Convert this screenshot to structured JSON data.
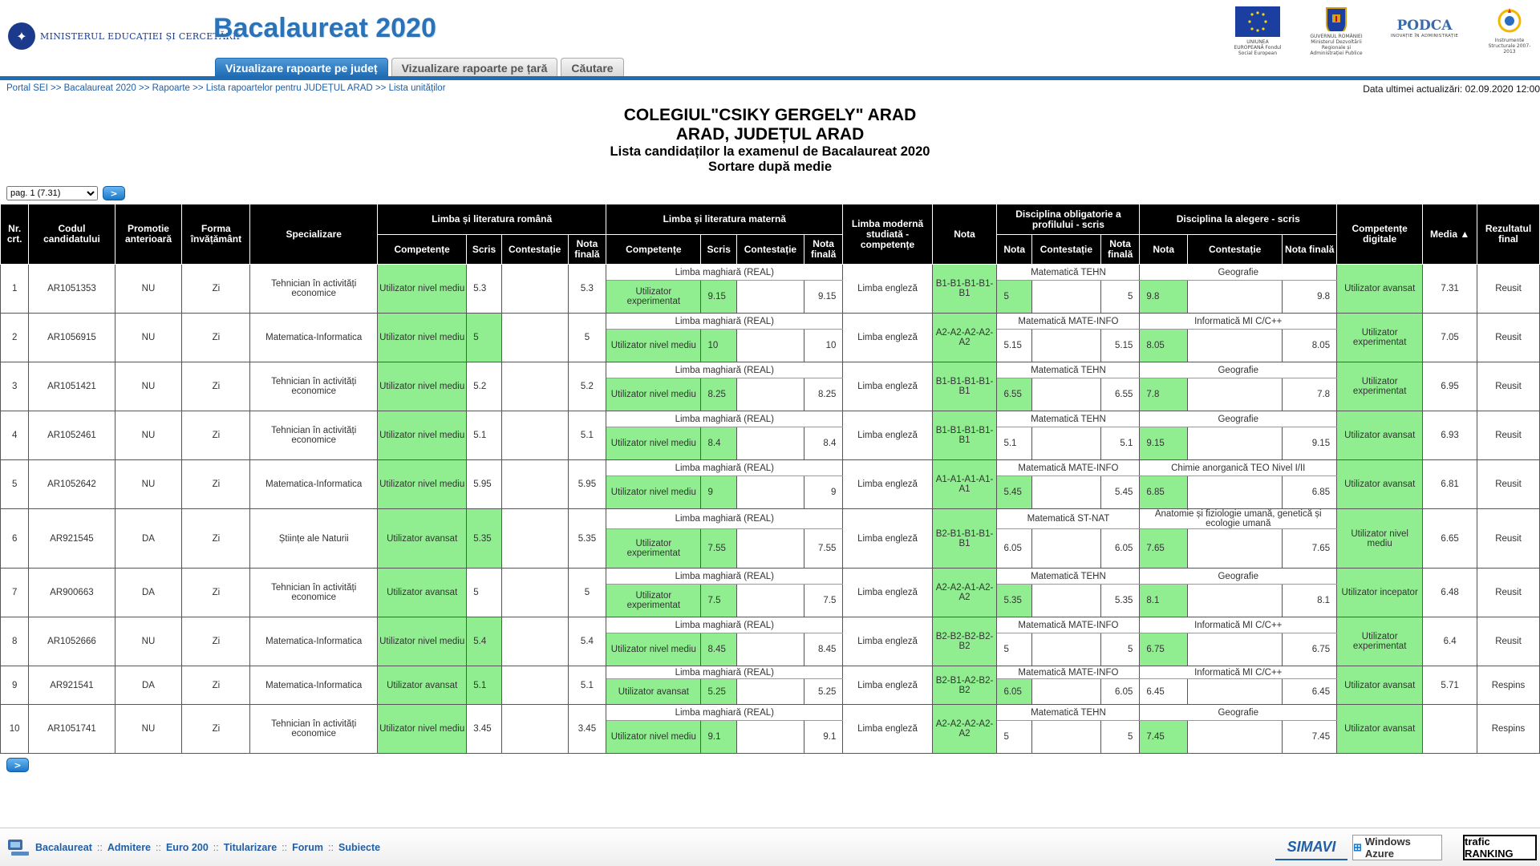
{
  "header": {
    "ministry": "MINISTERUL EDUCAȚIEI ȘI CERCETĂRII",
    "app_title": "Bacalaureat 2020",
    "logos": [
      {
        "name": "eu",
        "caption": "UNIUNEA EUROPEANĂ Fondul Social European"
      },
      {
        "name": "gov",
        "caption": "GUVERNUL ROMÂNIEI Ministerul Dezvoltării Regionale și Administrației Publice"
      },
      {
        "name": "podca",
        "caption": "PODCA",
        "sub": "INOVAȚIE ÎN ADMINISTRAȚIE"
      },
      {
        "name": "instr",
        "caption": "Instrumente Structurale 2007-2013"
      }
    ]
  },
  "tabs": [
    {
      "label": "Vizualizare rapoarte pe județ",
      "active": true
    },
    {
      "label": "Vizualizare rapoarte pe țară",
      "active": false
    },
    {
      "label": "Căutare",
      "active": false
    }
  ],
  "breadcrumb": [
    "Portal SEI",
    "Bacalaureat 2020",
    "Rapoarte",
    "Lista rapoartelor pentru JUDEȚUL ARAD",
    "Lista unităților"
  ],
  "breadcrumb_sep": ">>",
  "updated": "Data ultimei actualizări: 02.09.2020 12:00",
  "titles": {
    "school": "COLEGIUL\"CSIKY GERGELY\" ARAD",
    "location": "ARAD, JUDEȚUL ARAD",
    "list": "Lista candidaților la examenul de Bacalaureat 2020",
    "sort": "Sortare după medie"
  },
  "pager": {
    "selected": "pag. 1 (7.31)",
    "go": ">"
  },
  "table": {
    "headers": {
      "nr": "Nr. crt.",
      "code": "Codul candidatului",
      "promo": "Promotie anterioară",
      "form": "Forma învățământ",
      "spec": "Specializare",
      "romana": "Limba și literatura română",
      "materna": "Limba și literatura maternă",
      "moderna": "Limba modernă studiată - competențe",
      "nota": "Nota",
      "obligatorie": "Disciplina obligatorie a profilului - scris",
      "alegere": "Disciplina la alegere - scris",
      "digitale": "Competențe digitale",
      "media": "Media ▲",
      "rezultat": "Rezultatul final",
      "competente": "Competențe",
      "scris": "Scris",
      "contestatie": "Contestație",
      "nota_finala": "Nota finală",
      "nota_s": "Nota"
    },
    "rows": [
      {
        "nr": "1",
        "code": "AR1051353",
        "promo": "NU",
        "form": "Zi",
        "spec": "Tehnician în activități economice",
        "ro_comp": "Utilizator nivel mediu",
        "ro_scris": "5.3",
        "ro_cont": "",
        "ro_final": "5.3",
        "mat_subj": "Limba maghiară (REAL)",
        "mat_comp": "Utilizator experimentat",
        "mat_scris": "9.15",
        "mat_cont": "",
        "mat_final": "9.15",
        "modern": "Limba engleză",
        "nota": "B1-B1-B1-B1-B1",
        "ob_subj": "Matematică TEHN",
        "ob_nota": "5",
        "ob_cont": "",
        "ob_final": "5",
        "al_subj": "Geografie",
        "al_nota": "9.8",
        "al_cont": "",
        "al_final": "9.8",
        "digit": "Utilizator avansat",
        "media": "7.31",
        "rez": "Reusit"
      },
      {
        "nr": "2",
        "code": "AR1056915",
        "promo": "NU",
        "form": "Zi",
        "spec": "Matematica-Informatica",
        "ro_comp": "Utilizator nivel mediu",
        "ro_scris": "5",
        "ro_cont": "",
        "ro_final": "5",
        "mat_subj": "Limba maghiară (REAL)",
        "mat_comp": "Utilizator nivel mediu",
        "mat_scris": "10",
        "mat_cont": "",
        "mat_final": "10",
        "modern": "Limba engleză",
        "nota": "A2-A2-A2-A2-A2",
        "ob_subj": "Matematică MATE-INFO",
        "ob_nota": "5.15",
        "ob_cont": "",
        "ob_final": "5.15",
        "al_subj": "Informatică MI C/C++",
        "al_nota": "8.05",
        "al_cont": "",
        "al_final": "8.05",
        "digit": "Utilizator experimentat",
        "media": "7.05",
        "rez": "Reusit"
      },
      {
        "nr": "3",
        "code": "AR1051421",
        "promo": "NU",
        "form": "Zi",
        "spec": "Tehnician în activități economice",
        "ro_comp": "Utilizator nivel mediu",
        "ro_scris": "5.2",
        "ro_cont": "",
        "ro_final": "5.2",
        "mat_subj": "Limba maghiară (REAL)",
        "mat_comp": "Utilizator nivel mediu",
        "mat_scris": "8.25",
        "mat_cont": "",
        "mat_final": "8.25",
        "modern": "Limba engleză",
        "nota": "B1-B1-B1-B1-B1",
        "ob_subj": "Matematică TEHN",
        "ob_nota": "6.55",
        "ob_cont": "",
        "ob_final": "6.55",
        "al_subj": "Geografie",
        "al_nota": "7.8",
        "al_cont": "",
        "al_final": "7.8",
        "digit": "Utilizator experimentat",
        "media": "6.95",
        "rez": "Reusit"
      },
      {
        "nr": "4",
        "code": "AR1052461",
        "promo": "NU",
        "form": "Zi",
        "spec": "Tehnician în activități economice",
        "ro_comp": "Utilizator nivel mediu",
        "ro_scris": "5.1",
        "ro_cont": "",
        "ro_final": "5.1",
        "mat_subj": "Limba maghiară (REAL)",
        "mat_comp": "Utilizator nivel mediu",
        "mat_scris": "8.4",
        "mat_cont": "",
        "mat_final": "8.4",
        "modern": "Limba engleză",
        "nota": "B1-B1-B1-B1-B1",
        "ob_subj": "Matematică TEHN",
        "ob_nota": "5.1",
        "ob_cont": "",
        "ob_final": "5.1",
        "al_subj": "Geografie",
        "al_nota": "9.15",
        "al_cont": "",
        "al_final": "9.15",
        "digit": "Utilizator avansat",
        "media": "6.93",
        "rez": "Reusit"
      },
      {
        "nr": "5",
        "code": "AR1052642",
        "promo": "NU",
        "form": "Zi",
        "spec": "Matematica-Informatica",
        "ro_comp": "Utilizator nivel mediu",
        "ro_scris": "5.95",
        "ro_cont": "",
        "ro_final": "5.95",
        "mat_subj": "Limba maghiară (REAL)",
        "mat_comp": "Utilizator nivel mediu",
        "mat_scris": "9",
        "mat_cont": "",
        "mat_final": "9",
        "modern": "Limba engleză",
        "nota": "A1-A1-A1-A1-A1",
        "ob_subj": "Matematică MATE-INFO",
        "ob_nota": "5.45",
        "ob_cont": "",
        "ob_final": "5.45",
        "al_subj": "Chimie anorganică TEO Nivel I/II",
        "al_nota": "6.85",
        "al_cont": "",
        "al_final": "6.85",
        "digit": "Utilizator avansat",
        "media": "6.81",
        "rez": "Reusit"
      },
      {
        "nr": "6",
        "code": "AR921545",
        "promo": "DA",
        "form": "Zi",
        "spec": "Științe ale Naturii",
        "ro_comp": "Utilizator avansat",
        "ro_scris": "5.35",
        "ro_cont": "",
        "ro_final": "5.35",
        "mat_subj": "Limba maghiară (REAL)",
        "mat_comp": "Utilizator experimentat",
        "mat_scris": "7.55",
        "mat_cont": "",
        "mat_final": "7.55",
        "modern": "Limba engleză",
        "nota": "B2-B1-B1-B1-B1",
        "ob_subj": "Matematică ST-NAT",
        "ob_nota": "6.05",
        "ob_cont": "",
        "ob_final": "6.05",
        "al_subj": "Anatomie și fiziologie umană, genetică și ecologie umană",
        "al_nota": "7.65",
        "al_cont": "",
        "al_final": "7.65",
        "digit": "Utilizator nivel mediu",
        "media": "6.65",
        "rez": "Reusit"
      },
      {
        "nr": "7",
        "code": "AR900663",
        "promo": "DA",
        "form": "Zi",
        "spec": "Tehnician în activități economice",
        "ro_comp": "Utilizator avansat",
        "ro_scris": "5",
        "ro_cont": "",
        "ro_final": "5",
        "mat_subj": "Limba maghiară (REAL)",
        "mat_comp": "Utilizator experimentat",
        "mat_scris": "7.5",
        "mat_cont": "",
        "mat_final": "7.5",
        "modern": "Limba engleză",
        "nota": "A2-A2-A1-A2-A2",
        "ob_subj": "Matematică TEHN",
        "ob_nota": "5.35",
        "ob_cont": "",
        "ob_final": "5.35",
        "al_subj": "Geografie",
        "al_nota": "8.1",
        "al_cont": "",
        "al_final": "8.1",
        "digit": "Utilizator incepator",
        "media": "6.48",
        "rez": "Reusit"
      },
      {
        "nr": "8",
        "code": "AR1052666",
        "promo": "NU",
        "form": "Zi",
        "spec": "Matematica-Informatica",
        "ro_comp": "Utilizator nivel mediu",
        "ro_scris": "5.4",
        "ro_cont": "",
        "ro_final": "5.4",
        "mat_subj": "Limba maghiară (REAL)",
        "mat_comp": "Utilizator nivel mediu",
        "mat_scris": "8.45",
        "mat_cont": "",
        "mat_final": "8.45",
        "modern": "Limba engleză",
        "nota": "B2-B2-B2-B2-B2",
        "ob_subj": "Matematică MATE-INFO",
        "ob_nota": "5",
        "ob_cont": "",
        "ob_final": "5",
        "al_subj": "Informatică MI C/C++",
        "al_nota": "6.75",
        "al_cont": "",
        "al_final": "6.75",
        "digit": "Utilizator experimentat",
        "media": "6.4",
        "rez": "Reusit"
      },
      {
        "nr": "9",
        "code": "AR921541",
        "promo": "DA",
        "form": "Zi",
        "spec": "Matematica-Informatica",
        "ro_comp": "Utilizator avansat",
        "ro_scris": "5.1",
        "ro_cont": "",
        "ro_final": "5.1",
        "mat_subj": "Limba maghiară (REAL)",
        "mat_comp": "Utilizator avansat",
        "mat_scris": "5.25",
        "mat_cont": "",
        "mat_final": "5.25",
        "modern": "Limba engleză",
        "nota": "B2-B1-A2-B2-B2",
        "ob_subj": "Matematică MATE-INFO",
        "ob_nota": "6.05",
        "ob_cont": "",
        "ob_final": "6.05",
        "al_subj": "Informatică MI C/C++",
        "al_nota": "6.45",
        "al_cont": "",
        "al_final": "6.45",
        "digit": "Utilizator avansat",
        "media": "5.71",
        "rez": "Respins"
      },
      {
        "nr": "10",
        "code": "AR1051741",
        "promo": "NU",
        "form": "Zi",
        "spec": "Tehnician în activități economice",
        "ro_comp": "Utilizator nivel mediu",
        "ro_scris": "3.45",
        "ro_cont": "",
        "ro_final": "3.45",
        "mat_subj": "Limba maghiară (REAL)",
        "mat_comp": "Utilizator nivel mediu",
        "mat_scris": "9.1",
        "mat_cont": "",
        "mat_final": "9.1",
        "modern": "Limba engleză",
        "nota": "A2-A2-A2-A2-A2",
        "ob_subj": "Matematică TEHN",
        "ob_nota": "5",
        "ob_cont": "",
        "ob_final": "5",
        "al_subj": "Geografie",
        "al_nota": "7.45",
        "al_cont": "",
        "al_final": "7.45",
        "digit": "Utilizator avansat",
        "media": "",
        "rez": "Respins"
      }
    ],
    "green": {
      "ro_comp": [
        1,
        1,
        1,
        1,
        1,
        1,
        1,
        1,
        1,
        1
      ],
      "ro_scris": [
        0,
        1,
        0,
        0,
        0,
        1,
        0,
        1,
        1,
        0
      ],
      "mat_comp": [
        1,
        1,
        1,
        1,
        1,
        1,
        1,
        1,
        1,
        1
      ],
      "mat_scris": [
        1,
        1,
        1,
        1,
        1,
        1,
        1,
        1,
        1,
        1
      ],
      "nota": [
        1,
        1,
        1,
        1,
        1,
        1,
        1,
        1,
        1,
        1
      ],
      "ob_nota": [
        1,
        0,
        1,
        0,
        1,
        0,
        1,
        0,
        1,
        0
      ],
      "al_nota": [
        1,
        1,
        1,
        1,
        1,
        1,
        1,
        1,
        0,
        1
      ],
      "digit": [
        1,
        1,
        1,
        1,
        1,
        1,
        1,
        1,
        1,
        1
      ]
    }
  },
  "footer": {
    "links": [
      "Bacalaureat",
      "Admitere",
      "Euro 200",
      "Titularizare",
      "Forum",
      "Subiecte"
    ],
    "sep": "::",
    "badges": [
      "SIMAVI",
      "Windows Azure",
      "trafic RANKING"
    ]
  },
  "colors": {
    "accent": "#1f6cb3",
    "green": "#90ee90",
    "header_bg": "#000000"
  }
}
